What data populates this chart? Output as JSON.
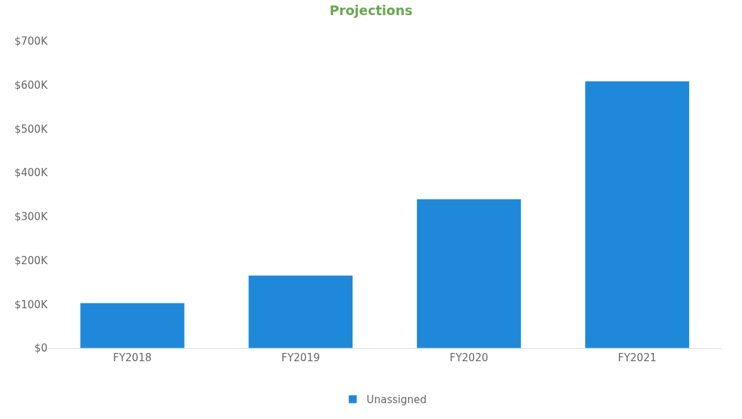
{
  "chart_data": {
    "type": "bar",
    "title": "Projections",
    "categories": [
      "FY2018",
      "FY2019",
      "FY2020",
      "FY2021"
    ],
    "series": [
      {
        "name": "Unassigned",
        "color": "#1f88d8",
        "values": [
          103000,
          166000,
          340000,
          609000
        ]
      }
    ],
    "ylim": [
      0,
      700000
    ],
    "yticks": [
      {
        "value": 0,
        "label": "$0"
      },
      {
        "value": 100000,
        "label": "$100K"
      },
      {
        "value": 200000,
        "label": "$200K"
      },
      {
        "value": 300000,
        "label": "$300K"
      },
      {
        "value": 400000,
        "label": "$400K"
      },
      {
        "value": 500000,
        "label": "$500K"
      },
      {
        "value": 600000,
        "label": "$600K"
      },
      {
        "value": 700000,
        "label": "$700K"
      }
    ],
    "grid": false,
    "legend": "bottom"
  }
}
